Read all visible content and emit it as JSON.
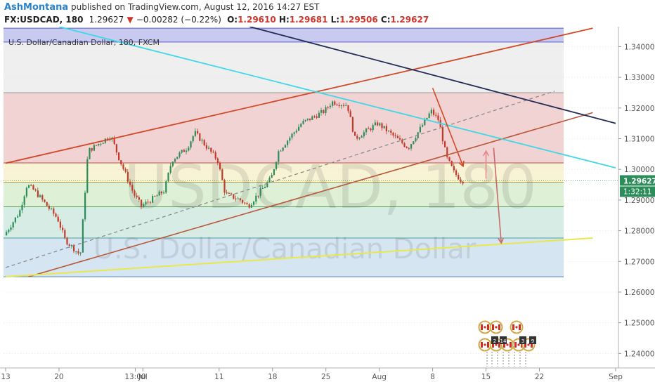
{
  "header": {
    "author": "AshMontana",
    "published": "published on TradingView.com, August 12, 2016 14:27 EST",
    "symbol": "FX:USDCAD, 180",
    "last": "1.29627",
    "change": "−0.00282 (−0.22%)",
    "o_label": "O:",
    "o": "1.29610",
    "h_label": "H:",
    "h": "1.29681",
    "l_label": "L:",
    "l": "1.29506",
    "c_label": "C:",
    "c": "1.29627"
  },
  "colors": {
    "down": "#d0352b",
    "trend_red": "#d04a2a",
    "cyan": "#3ed8e6",
    "navy": "#232c55",
    "yellow": "#e8e84c",
    "candle_up": "#2c8d5a",
    "candle_down": "#c13a2a",
    "band_purple": "#b6b8ea",
    "band_gray": "#e9e9e9",
    "band_pink": "#eec4c4",
    "band_yellow": "#f7efc7",
    "band_green": "#d3ebc8",
    "band_teal": "#cbe6dd",
    "band_blue": "#c8dcee"
  },
  "chart_data": {
    "type": "line",
    "title": "U.S. Dollar/Canadian Dollar, 180, FXCM",
    "watermark_symbol": "USDCAD, 180",
    "watermark_name": "U.S. Dollar/Canadian Dollar",
    "ylim": [
      1.2355,
      1.3465
    ],
    "y_ticks": [
      "1.34000",
      "1.33000",
      "1.32000",
      "1.31000",
      "1.30000",
      "1.29000",
      "1.28000",
      "1.27000",
      "1.26000",
      "1.25000",
      "1.24000"
    ],
    "x_ticks": [
      "13",
      "20",
      "13:00",
      "Jul",
      "11",
      "18",
      "25",
      "Aug",
      "8",
      "15",
      "22",
      "Sep"
    ],
    "last_price_label": "1.29627",
    "countdown_label": "1:32:11",
    "fib_levels": [
      1.346,
      1.3415,
      1.325,
      1.3021,
      1.2958,
      1.2878,
      1.2776,
      1.265
    ],
    "close_series": {
      "name": "USDCAD close (3h)",
      "x": [
        "Jun 13",
        "Jun 15",
        "Jun 16",
        "Jun 17",
        "Jun 20",
        "Jun 21",
        "Jun 23",
        "Jun 24",
        "Jun 27",
        "Jun 28",
        "Jun 30",
        "Jul 1",
        "Jul 4",
        "Jul 5",
        "Jul 7",
        "Jul 8",
        "Jul 11",
        "Jul 12",
        "Jul 14",
        "Jul 15",
        "Jul 18",
        "Jul 19",
        "Jul 21",
        "Jul 22",
        "Jul 25",
        "Jul 26",
        "Jul 28",
        "Jul 29",
        "Aug 1",
        "Aug 2",
        "Aug 4",
        "Aug 5",
        "Aug 8",
        "Aug 9",
        "Aug 10",
        "Aug 11",
        "Aug 12"
      ],
      "y": [
        1.2785,
        1.286,
        1.295,
        1.293,
        1.284,
        1.277,
        1.272,
        1.306,
        1.311,
        1.304,
        1.292,
        1.288,
        1.293,
        1.303,
        1.307,
        1.312,
        1.303,
        1.292,
        1.29,
        1.288,
        1.297,
        1.306,
        1.312,
        1.315,
        1.319,
        1.322,
        1.321,
        1.31,
        1.315,
        1.313,
        1.309,
        1.307,
        1.319,
        1.316,
        1.304,
        1.299,
        1.2963
      ]
    },
    "trend_lines": [
      {
        "name": "upper channel",
        "x": [
          "Jun 13",
          "Aug 29"
        ],
        "y": [
          1.302,
          1.346
        ]
      },
      {
        "name": "lower channel",
        "x": [
          "Jun 16",
          "Aug 29"
        ],
        "y": [
          1.265,
          1.3185
        ]
      },
      {
        "name": "mid channel (dashed)",
        "x": [
          "Jun 13",
          "Aug 24"
        ],
        "y": [
          1.268,
          1.3255
        ]
      },
      {
        "name": "cyan line",
        "x": [
          "Jun 20",
          "Sep 1"
        ],
        "y": [
          1.3465,
          1.3005
        ]
      },
      {
        "name": "navy line",
        "x": [
          "Jul 15",
          "Sep 1"
        ],
        "y": [
          1.3465,
          1.315
        ]
      },
      {
        "name": "yellow line",
        "x": [
          "Jun 13",
          "Aug 29"
        ],
        "y": [
          1.265,
          1.2776
        ]
      }
    ],
    "annotations": [
      {
        "type": "arrow",
        "from": [
          "Aug 8",
          1.3265
        ],
        "to": [
          "Aug 12",
          1.301
        ],
        "color": "#d04a2a"
      },
      {
        "type": "arrow",
        "from": [
          "Aug 15",
          1.297
        ],
        "to": [
          "Aug 15",
          1.306
        ],
        "color": "#e08a8a"
      },
      {
        "type": "arrow",
        "from": [
          "Aug 16",
          1.307
        ],
        "to": [
          "Aug 17",
          1.276
        ],
        "color": "#c86a6a"
      }
    ],
    "events": [
      {
        "flag": "CA",
        "count": 2
      },
      {
        "flag": "CA",
        "count": 14
      },
      {
        "flag": "CA",
        "count": 3
      },
      {
        "flag": "CA",
        "count": 9
      }
    ],
    "grid": true
  }
}
